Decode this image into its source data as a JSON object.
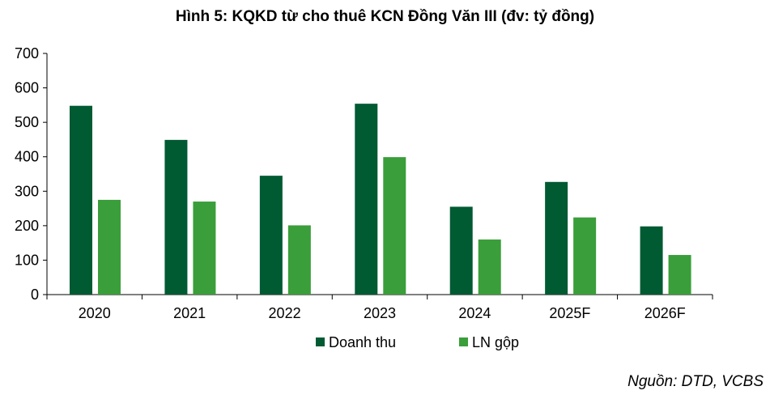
{
  "chart_data": {
    "type": "bar",
    "title": "Hình 5: KQKD từ cho thuê KCN Đồng Văn III (đv: tỷ đồng)",
    "categories": [
      "2020",
      "2021",
      "2022",
      "2023",
      "2024",
      "2025F",
      "2026F"
    ],
    "series": [
      {
        "name": "Doanh thu",
        "color": "#005a32",
        "values": [
          548,
          449,
          345,
          554,
          255,
          327,
          198
        ]
      },
      {
        "name": "LN gộp",
        "color": "#3a9e3a",
        "values": [
          275,
          270,
          201,
          399,
          160,
          224,
          115
        ]
      }
    ],
    "ylim": [
      0,
      700
    ],
    "yticks": [
      0,
      100,
      200,
      300,
      400,
      500,
      600,
      700
    ],
    "grid": false,
    "legend": "bottom",
    "source": "Nguồn: DTD, VCBS"
  }
}
